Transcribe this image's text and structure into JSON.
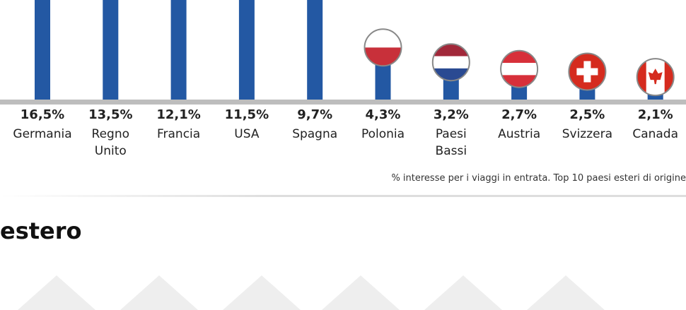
{
  "chart_data": {
    "type": "bar",
    "categories": [
      "Germania",
      "Regno Unito",
      "Francia",
      "USA",
      "Spagna",
      "Polonia",
      "Paesi Bassi",
      "Austria",
      "Svizzera",
      "Canada"
    ],
    "values": [
      16.5,
      13.5,
      12.1,
      11.5,
      9.7,
      4.3,
      3.2,
      2.7,
      2.5,
      2.1
    ],
    "value_labels": [
      "16,5%",
      "13,5%",
      "12,1%",
      "11,5%",
      "9,7%",
      "4,3%",
      "3,2%",
      "2,7%",
      "2,5%",
      "2,1%"
    ],
    "color": "#2358a3",
    "note": "% interesse per i viaggi in entrata. Top 10 paesi esteri di origine"
  },
  "heading": "estero"
}
